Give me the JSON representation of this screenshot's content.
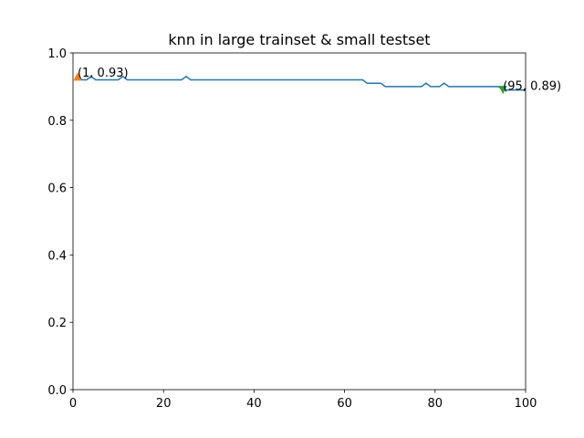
{
  "chart_data": {
    "type": "line",
    "title": "knn in large trainset & small testset",
    "x": [
      1,
      2,
      3,
      4,
      5,
      6,
      7,
      8,
      9,
      10,
      11,
      12,
      13,
      14,
      15,
      16,
      17,
      18,
      19,
      20,
      21,
      22,
      23,
      24,
      25,
      26,
      27,
      28,
      29,
      30,
      31,
      32,
      33,
      34,
      35,
      36,
      37,
      38,
      39,
      40,
      41,
      42,
      43,
      44,
      45,
      46,
      47,
      48,
      49,
      50,
      51,
      52,
      53,
      54,
      55,
      56,
      57,
      58,
      59,
      60,
      61,
      62,
      63,
      64,
      65,
      66,
      67,
      68,
      69,
      70,
      71,
      72,
      73,
      74,
      75,
      76,
      77,
      78,
      79,
      80,
      81,
      82,
      83,
      84,
      85,
      86,
      87,
      88,
      89,
      90,
      91,
      92,
      93,
      94,
      95,
      96,
      97,
      98,
      99,
      100
    ],
    "series": [
      {
        "color": "#1f77b4",
        "values": [
          0.93,
          0.92,
          0.92,
          0.93,
          0.92,
          0.92,
          0.92,
          0.92,
          0.92,
          0.92,
          0.93,
          0.92,
          0.92,
          0.92,
          0.92,
          0.92,
          0.92,
          0.92,
          0.92,
          0.92,
          0.92,
          0.92,
          0.92,
          0.92,
          0.93,
          0.92,
          0.92,
          0.92,
          0.92,
          0.92,
          0.92,
          0.92,
          0.92,
          0.92,
          0.92,
          0.92,
          0.92,
          0.92,
          0.92,
          0.92,
          0.92,
          0.92,
          0.92,
          0.92,
          0.92,
          0.92,
          0.92,
          0.92,
          0.92,
          0.92,
          0.92,
          0.92,
          0.92,
          0.92,
          0.92,
          0.92,
          0.92,
          0.92,
          0.92,
          0.92,
          0.92,
          0.92,
          0.92,
          0.92,
          0.91,
          0.91,
          0.91,
          0.91,
          0.9,
          0.9,
          0.9,
          0.9,
          0.9,
          0.9,
          0.9,
          0.9,
          0.9,
          0.91,
          0.9,
          0.9,
          0.9,
          0.91,
          0.9,
          0.9,
          0.9,
          0.9,
          0.9,
          0.9,
          0.9,
          0.9,
          0.9,
          0.9,
          0.9,
          0.9,
          0.89,
          0.89,
          0.89,
          0.89,
          0.89,
          0.89
        ]
      }
    ],
    "annotations": [
      {
        "x": 1,
        "y": 0.93,
        "label": "(1, 0.93)",
        "color": "#ff7f0e",
        "marker": "triangle-up"
      },
      {
        "x": 95,
        "y": 0.89,
        "label": "(95, 0.89)",
        "color": "#2ca02c",
        "marker": "triangle-down"
      }
    ],
    "xlim": [
      0,
      100
    ],
    "xticks": [
      0,
      20,
      40,
      60,
      80,
      100
    ],
    "ylim": [
      0,
      1
    ],
    "yticks": [
      {
        "value": 0,
        "label": "0.0"
      },
      0.2,
      0.4,
      0.6,
      0.8,
      {
        "value": 1,
        "label": "1.0"
      }
    ],
    "grid": false
  }
}
